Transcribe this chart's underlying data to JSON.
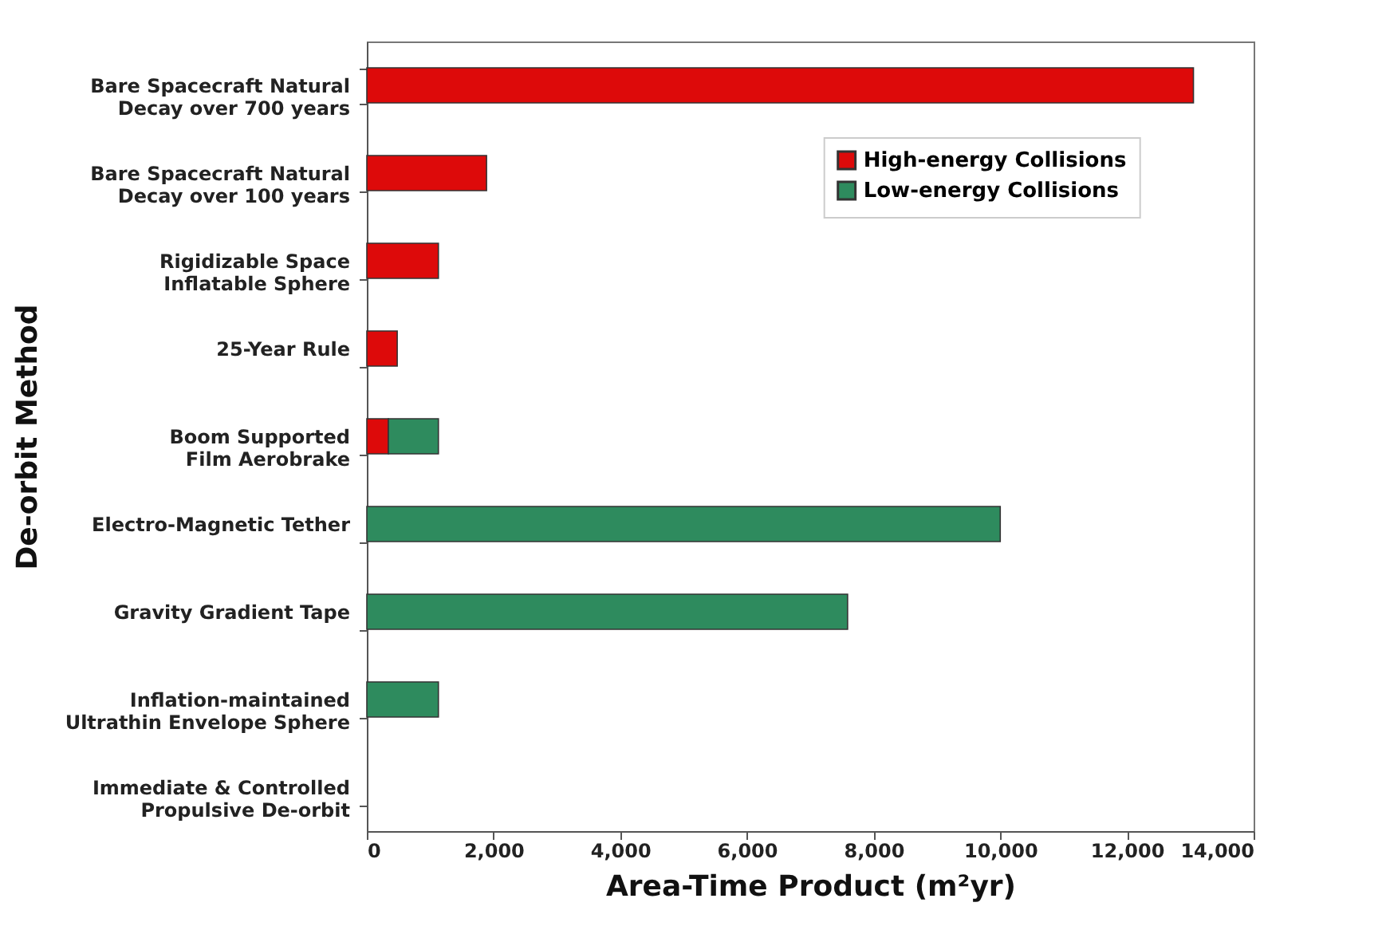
{
  "chart_data": {
    "type": "bar",
    "orientation": "horizontal",
    "stacked": true,
    "xlabel": "Area-Time Product (m²yr)",
    "ylabel": "De-orbit Method",
    "categories": [
      "Bare Spacecraft Natural Decay over 700 years",
      "Bare Spacecraft Natural Decay over 100 years",
      "Rigidizable Space Inflatable Sphere",
      "25-Year Rule",
      "Boom Supported Film Aerobrake",
      "Electro-Magnetic Tether",
      "Gravity Gradient Tape",
      "Inflation-maintained Ultrathin Envelope Sphere",
      "Immediate & Controlled Propulsive De-orbit"
    ],
    "series": [
      {
        "name": "High-energy Collisions",
        "color": "#dd0a0a",
        "values": [
          13050,
          1890,
          1130,
          480,
          340,
          null,
          null,
          null,
          null
        ]
      },
      {
        "name": "Low-energy Collisions",
        "color": "#2e8b5e",
        "values": [
          null,
          null,
          null,
          null,
          790,
          10000,
          7590,
          1130,
          null
        ]
      }
    ],
    "xlim": [
      0,
      14000
    ],
    "xticks": [
      0,
      {
        "value": 2000,
        "label": "2,000"
      },
      {
        "value": 4000,
        "label": "4,000"
      },
      {
        "value": 6000,
        "label": "6,000"
      },
      {
        "value": 8000,
        "label": "8,000"
      },
      {
        "value": 10000,
        "label": "10,000"
      },
      {
        "value": 12000,
        "label": "12,000"
      },
      {
        "value": 14000,
        "label": "14,000"
      }
    ],
    "grid": false,
    "legend": "top right"
  }
}
